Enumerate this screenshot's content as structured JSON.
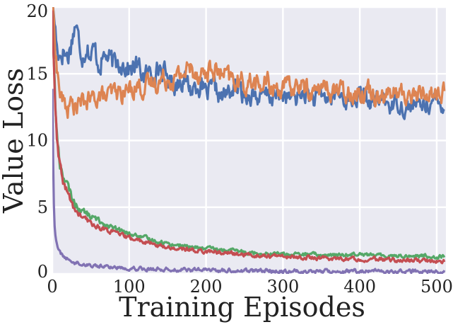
{
  "chart_data": {
    "type": "line",
    "title": "",
    "xlabel": "Training Episodes",
    "ylabel": "Value Loss",
    "xlim": [
      0,
      512
    ],
    "ylim": [
      0,
      20
    ],
    "xticks": [
      0,
      100,
      200,
      300,
      400,
      500
    ],
    "yticks": [
      0,
      5,
      10,
      15,
      20
    ],
    "grid": true,
    "legend": "none",
    "background_color": "#EAEAF2",
    "grid_color": "#FFFFFF",
    "series": [
      {
        "name": "blue",
        "color": "#4C72B0",
        "x": [
          0,
          3,
          6,
          10,
          15,
          20,
          25,
          30,
          35,
          40,
          45,
          50,
          55,
          60,
          70,
          80,
          90,
          100,
          110,
          120,
          130,
          140,
          150,
          160,
          170,
          180,
          190,
          200,
          210,
          220,
          230,
          240,
          250,
          260,
          270,
          280,
          290,
          300,
          310,
          320,
          330,
          340,
          350,
          360,
          370,
          380,
          390,
          400,
          410,
          420,
          430,
          440,
          450,
          460,
          470,
          480,
          490,
          500,
          510
        ],
        "y": [
          20,
          19,
          17,
          16.5,
          16.8,
          16.2,
          17.5,
          18.8,
          17.2,
          16.5,
          17.3,
          16.3,
          16.8,
          15.8,
          16.4,
          15.6,
          16.0,
          15.3,
          15.6,
          14.8,
          15.1,
          15.5,
          14.6,
          14.2,
          14.8,
          13.8,
          14.3,
          13.4,
          13.9,
          13.2,
          13.6,
          14.0,
          13.3,
          13.6,
          13.1,
          13.4,
          13.2,
          13.5,
          13.1,
          13.3,
          13.6,
          13.0,
          13.4,
          13.1,
          13.5,
          13.2,
          12.9,
          13.4,
          13.0,
          12.8,
          13.2,
          12.6,
          12.9,
          12.4,
          12.7,
          12.6,
          12.9,
          12.7,
          12.8
        ]
      },
      {
        "name": "orange",
        "color": "#DD8452",
        "x": [
          0,
          3,
          6,
          10,
          15,
          20,
          25,
          30,
          40,
          50,
          60,
          70,
          80,
          90,
          100,
          110,
          120,
          130,
          140,
          150,
          160,
          170,
          180,
          190,
          200,
          210,
          220,
          230,
          240,
          250,
          260,
          270,
          280,
          290,
          300,
          310,
          320,
          330,
          340,
          350,
          360,
          370,
          380,
          390,
          400,
          410,
          420,
          430,
          440,
          450,
          460,
          470,
          480,
          490,
          500,
          510
        ],
        "y": [
          20,
          18,
          15.5,
          13.5,
          12.8,
          12.3,
          12.8,
          12.5,
          12.9,
          13.0,
          13.4,
          13.2,
          13.6,
          13.5,
          13.8,
          14.2,
          13.9,
          14.3,
          14.5,
          14.8,
          14.6,
          15.1,
          15.4,
          15.2,
          15.0,
          15.3,
          14.9,
          14.6,
          14.4,
          14.2,
          14.5,
          14.0,
          14.3,
          13.9,
          14.1,
          13.8,
          14.2,
          13.9,
          13.6,
          14.0,
          13.7,
          13.9,
          13.5,
          13.8,
          13.6,
          13.9,
          13.5,
          13.7,
          13.4,
          13.6,
          13.3,
          13.5,
          13.4,
          13.6,
          13.5,
          13.6
        ]
      },
      {
        "name": "green",
        "color": "#55A868",
        "x": [
          0,
          2,
          4,
          6,
          8,
          10,
          15,
          20,
          25,
          30,
          40,
          50,
          60,
          70,
          80,
          90,
          100,
          120,
          140,
          160,
          180,
          200,
          220,
          240,
          260,
          280,
          300,
          320,
          340,
          360,
          380,
          400,
          420,
          440,
          460,
          480,
          500,
          510
        ],
        "y": [
          20,
          16,
          12.5,
          10.5,
          9.2,
          8.2,
          7.3,
          6.5,
          5.8,
          5.2,
          4.7,
          4.3,
          4.0,
          3.7,
          3.4,
          3.2,
          3.0,
          2.7,
          2.4,
          2.2,
          2.0,
          1.9,
          1.8,
          1.7,
          1.6,
          1.55,
          1.5,
          1.45,
          1.45,
          1.4,
          1.4,
          1.6,
          1.35,
          1.4,
          1.35,
          1.35,
          1.3,
          1.3
        ]
      },
      {
        "name": "red",
        "color": "#C44E52",
        "x": [
          0,
          2,
          4,
          6,
          8,
          10,
          15,
          20,
          25,
          30,
          40,
          50,
          60,
          70,
          80,
          90,
          100,
          120,
          140,
          160,
          180,
          200,
          220,
          240,
          260,
          280,
          300,
          320,
          340,
          360,
          380,
          400,
          420,
          440,
          460,
          480,
          500,
          510
        ],
        "y": [
          20,
          15.5,
          12.0,
          10.0,
          8.8,
          7.8,
          6.8,
          6.0,
          5.3,
          4.7,
          4.2,
          3.8,
          3.5,
          3.3,
          3.1,
          2.9,
          2.7,
          2.4,
          2.1,
          1.9,
          1.8,
          1.7,
          1.6,
          1.5,
          1.4,
          1.35,
          1.3,
          1.25,
          1.2,
          1.15,
          1.15,
          1.1,
          1.1,
          1.05,
          1.0,
          1.0,
          0.95,
          0.95
        ]
      },
      {
        "name": "purple",
        "color": "#8172B3",
        "x": [
          0,
          1,
          2,
          3,
          4,
          6,
          8,
          10,
          15,
          20,
          25,
          30,
          40,
          50,
          60,
          80,
          100,
          120,
          140,
          160,
          180,
          200,
          250,
          300,
          350,
          400,
          450,
          500,
          510
        ],
        "y": [
          14,
          9.0,
          5.5,
          3.8,
          2.9,
          2.2,
          1.8,
          1.6,
          1.3,
          1.1,
          0.95,
          0.85,
          0.75,
          0.65,
          0.6,
          0.5,
          0.45,
          0.4,
          0.35,
          0.33,
          0.3,
          0.28,
          0.25,
          0.22,
          0.2,
          0.2,
          0.18,
          0.17,
          0.17
        ]
      }
    ]
  }
}
